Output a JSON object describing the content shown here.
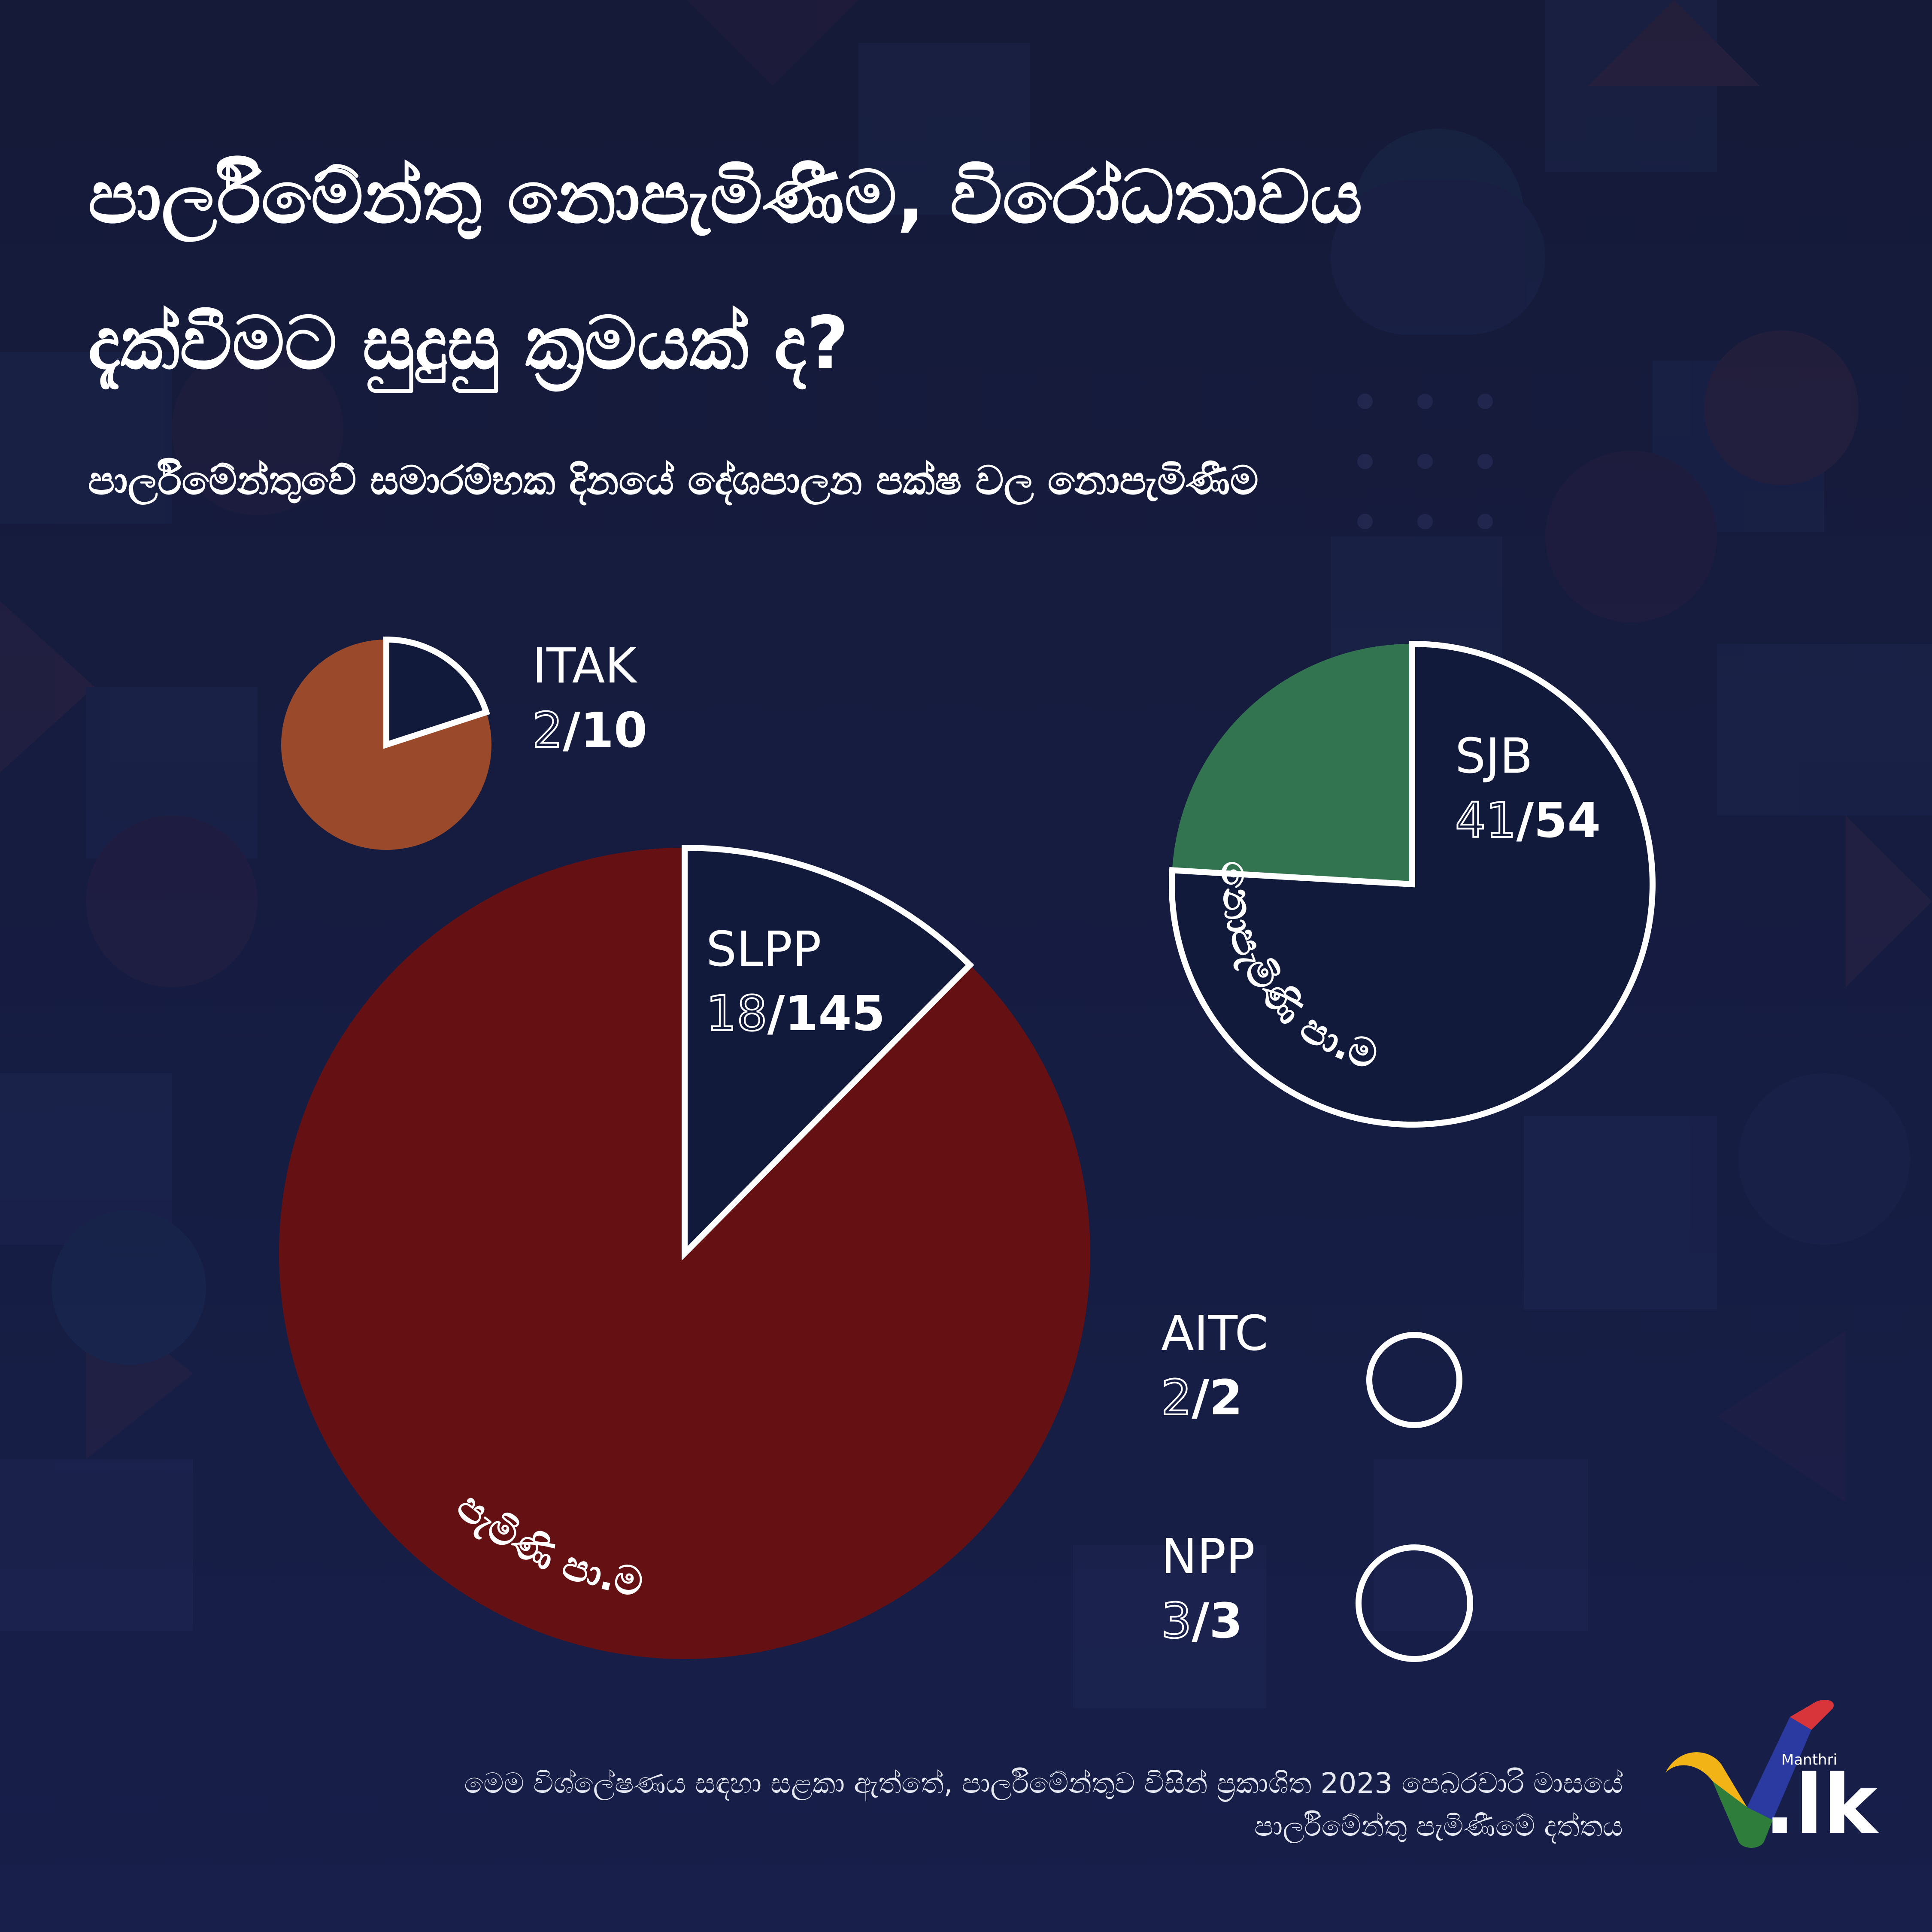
{
  "title": "පාර්ලිමේන්තු නොපැමිණීම, විරෝධතාවය\nදැක්වීමට සුදුසු ක්‍රමයක් ද?",
  "subtitle": "පාර්ලිමේන්තුවේ සමාරම්භක දිනයේ දේශපාලන පක්ෂ වල නොපැමිණීම",
  "colors": {
    "background": "#141b3e",
    "slpp": "#651114",
    "itak": "#9a4a2a",
    "sjb": "#32744f",
    "absent_slice": "#121a3b",
    "outline": "#ffffff"
  },
  "chart_data": {
    "type": "pie",
    "title": "පාර්ලිමේන්තුවේ සමාරම්භක දිනයේ දේශපාලන පක්ෂ වල නොපැමිණීම",
    "series": [
      {
        "name": "SLPP",
        "shown": "18",
        "total": "145",
        "absent": 18,
        "members": 145,
        "display": "18/145"
      },
      {
        "name": "ITAK",
        "shown": "2",
        "total": "10",
        "absent": 2,
        "members": 10,
        "display": "2/10"
      },
      {
        "name": "SJB",
        "shown": "41",
        "total": "54",
        "absent": 41,
        "members": 54,
        "display": "41/54"
      },
      {
        "name": "AITC",
        "shown": "2",
        "total": "2",
        "absent": 2,
        "members": 2,
        "display": "2/2"
      },
      {
        "name": "NPP",
        "shown": "3",
        "total": "3",
        "absent": 3,
        "members": 3,
        "display": "3/3"
      }
    ],
    "slice_labels": {
      "present": "පැමිණි පා.ම",
      "absent": "නොපැමිණි පා.ම"
    }
  },
  "footnote": {
    "line1": "මෙම විශ්ලේෂණය සඳහා සළකා ඇත්තේ, පාර්ලිමේන්තුව විසින් ප්‍රකාශිත 2023 පෙබරවාරි මාසයේ",
    "line2": "පාර්ලිමේන්තු පැමිණීමේ දත්තය"
  },
  "logo": {
    "small_text": "Manthri",
    "big_text": ".lk"
  }
}
